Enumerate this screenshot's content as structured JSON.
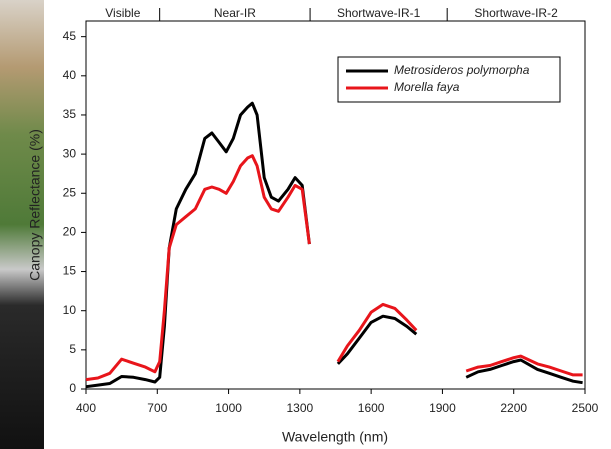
{
  "chart_data": {
    "type": "line",
    "x_label": "Wavelength (nm)",
    "y_label": "Canopy Reflectance (%)",
    "x": [
      400,
      450,
      500,
      550,
      600,
      650,
      690,
      710,
      730,
      750,
      780,
      820,
      860,
      900,
      930,
      960,
      990,
      1020,
      1050,
      1080,
      1100,
      1120,
      1150,
      1180,
      1210,
      1250,
      1280,
      1310,
      1340,
      1400,
      1460,
      1500,
      1550,
      1600,
      1650,
      1700,
      1750,
      1790,
      1900,
      2000,
      2050,
      2100,
      2150,
      2200,
      2230,
      2300,
      2350,
      2400,
      2450,
      2490
    ],
    "series": [
      {
        "name": "Metrosideros polymorpha",
        "color": "#000000",
        "values": [
          0.3,
          0.5,
          0.7,
          1.6,
          1.5,
          1.2,
          0.9,
          1.5,
          8,
          18,
          23,
          25.5,
          27.5,
          32,
          32.7,
          31.5,
          30.3,
          32,
          35,
          36,
          36.5,
          35,
          27,
          24.5,
          24,
          25.5,
          27,
          26,
          18.5,
          null,
          3.2,
          4.5,
          6.5,
          8.5,
          9.3,
          9,
          8,
          7,
          null,
          1.5,
          2.2,
          2.5,
          3,
          3.5,
          3.7,
          2.5,
          2,
          1.5,
          1,
          0.8
        ]
      },
      {
        "name": "Morella faya",
        "color": "#e8151b",
        "values": [
          1.2,
          1.4,
          2,
          3.8,
          3.3,
          2.8,
          2.2,
          3.5,
          10,
          18,
          21,
          22,
          23,
          25.5,
          25.8,
          25.5,
          25,
          26.5,
          28.5,
          29.5,
          29.8,
          28.5,
          24.5,
          23,
          22.7,
          24.5,
          26,
          25.5,
          18.5,
          null,
          3.5,
          5.5,
          7.5,
          9.8,
          10.8,
          10.3,
          8.8,
          7.5,
          null,
          2.3,
          2.8,
          3,
          3.5,
          4,
          4.2,
          3.2,
          2.8,
          2.3,
          1.8,
          1.8
        ]
      }
    ],
    "bands": [
      {
        "label": "Visible",
        "start": 400,
        "end": 710
      },
      {
        "label": "Near-IR",
        "start": 710,
        "end": 1343
      },
      {
        "label": "Shortwave-IR-1",
        "start": 1343,
        "end": 1920
      },
      {
        "label": "Shortwave-IR-2",
        "start": 1920,
        "end": 2500
      }
    ],
    "xlim": [
      400,
      2500
    ],
    "xticks": [
      400,
      700,
      1000,
      1300,
      1600,
      1900,
      2200,
      2500
    ],
    "ylim": [
      0,
      47
    ],
    "yticks": [
      0,
      5,
      10,
      15,
      20,
      25,
      30,
      35,
      40,
      45
    ],
    "legend": "top-right",
    "grid": false
  }
}
